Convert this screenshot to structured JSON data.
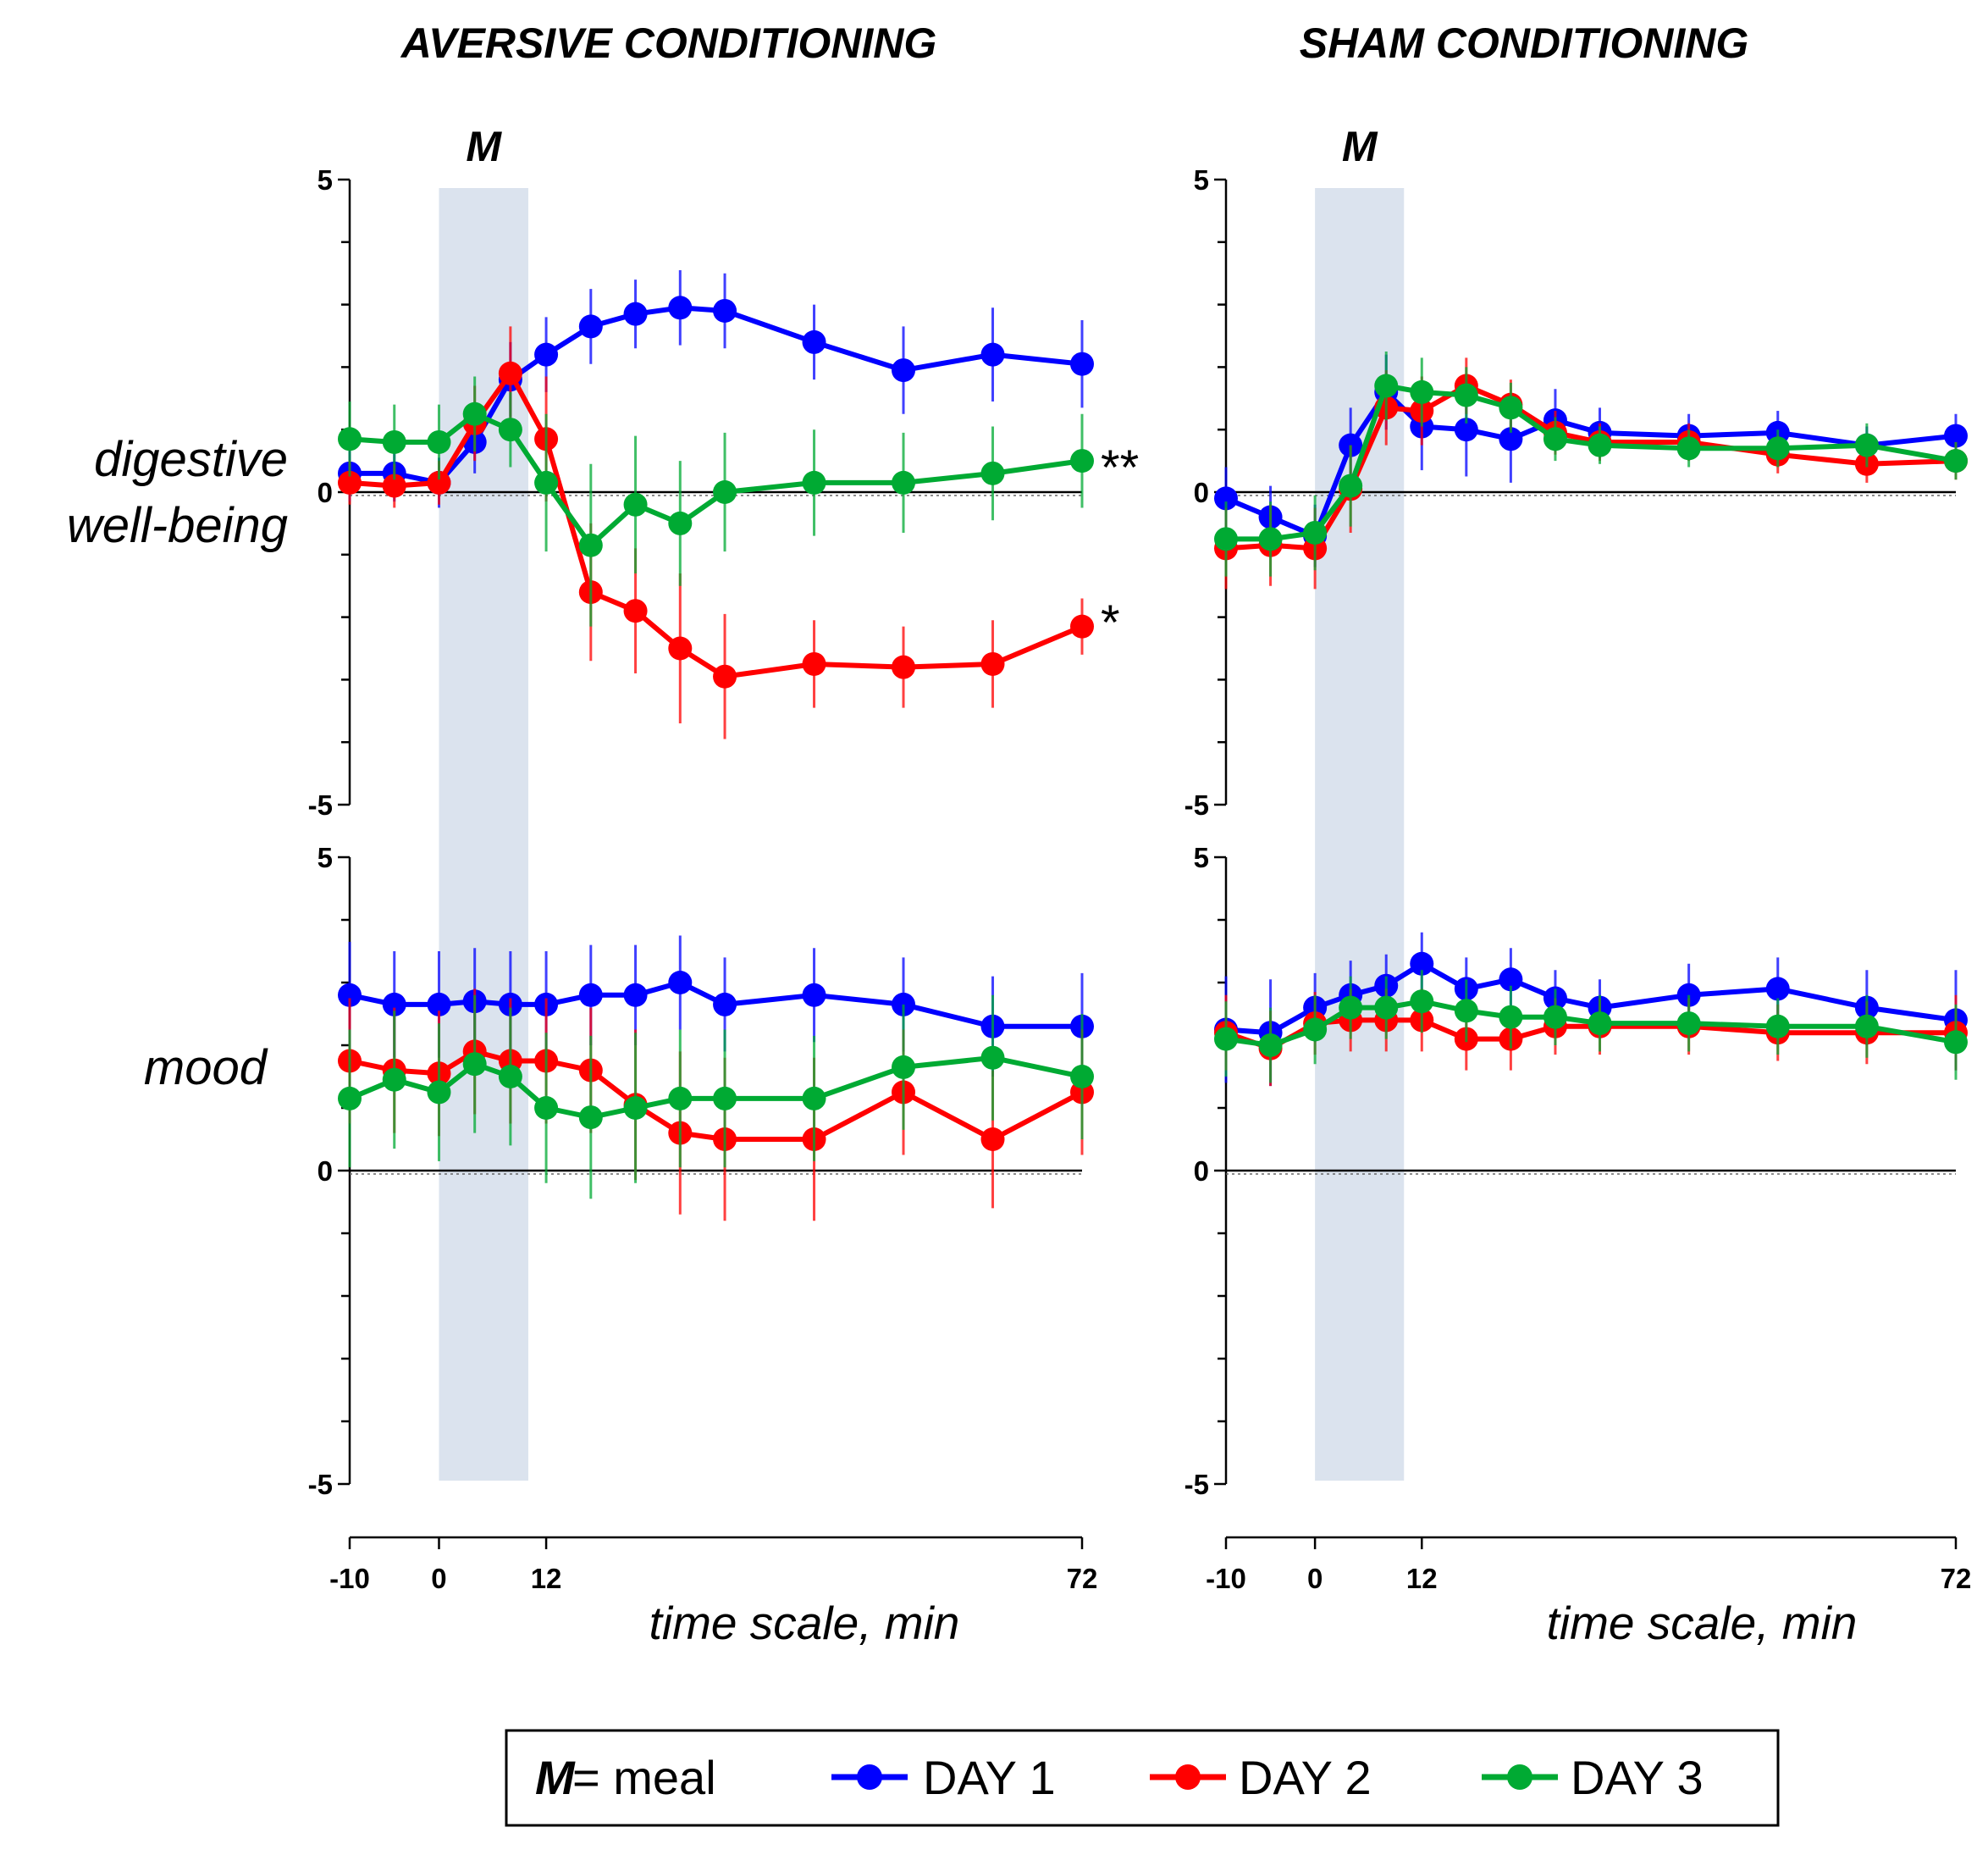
{
  "chart_data": [
    {
      "type": "line",
      "column": "AVERSIVE CONDITIONING",
      "row": "digestive well-being",
      "x": [
        -10,
        -5,
        0,
        4,
        8,
        12,
        17,
        22,
        27,
        32,
        42,
        52,
        62,
        72
      ],
      "ylim": [
        -5,
        5
      ],
      "yticks": [
        "-5",
        "0",
        "5"
      ],
      "series": [
        {
          "name": "DAY 1",
          "color": "#0000ff",
          "values": [
            0.3,
            0.3,
            0.15,
            0.8,
            1.8,
            2.2,
            2.65,
            2.85,
            2.95,
            2.9,
            2.4,
            1.95,
            2.2,
            2.05
          ],
          "errors": [
            0.45,
            0.45,
            0.4,
            0.5,
            0.6,
            0.6,
            0.6,
            0.55,
            0.6,
            0.6,
            0.6,
            0.7,
            0.75,
            0.7
          ]
        },
        {
          "name": "DAY 2",
          "color": "#ff0000",
          "values": [
            0.15,
            0.1,
            0.15,
            1.1,
            1.9,
            0.85,
            -1.6,
            -1.9,
            -2.5,
            -2.95,
            -2.75,
            -2.8,
            -2.75,
            -2.15
          ],
          "errors": [
            0.35,
            0.35,
            0.35,
            0.6,
            0.75,
            1.0,
            1.1,
            1.0,
            1.2,
            1.0,
            0.7,
            0.65,
            0.7,
            0.45
          ]
        },
        {
          "name": "DAY 3",
          "color": "#00aa33",
          "values": [
            0.85,
            0.8,
            0.8,
            1.25,
            1.0,
            0.15,
            -0.85,
            -0.2,
            -0.5,
            0.0,
            0.15,
            0.15,
            0.3,
            0.5
          ],
          "errors": [
            0.6,
            0.6,
            0.6,
            0.6,
            0.6,
            1.1,
            1.3,
            1.1,
            1.0,
            0.95,
            0.85,
            0.8,
            0.75,
            0.75
          ]
        }
      ],
      "annotations": [
        {
          "text": "**",
          "series": "DAY 3"
        },
        {
          "text": "*",
          "series": "DAY 2"
        }
      ]
    },
    {
      "type": "line",
      "column": "SHAM CONDITIONING",
      "row": "digestive well-being",
      "x": [
        -10,
        -5,
        0,
        4,
        8,
        12,
        17,
        22,
        27,
        32,
        42,
        52,
        62,
        72
      ],
      "ylim": [
        -5,
        5
      ],
      "yticks": [
        "-5",
        "0",
        "5"
      ],
      "series": [
        {
          "name": "DAY 1",
          "color": "#0000ff",
          "values": [
            -0.1,
            -0.4,
            -0.7,
            0.75,
            1.6,
            1.05,
            1.0,
            0.85,
            1.15,
            0.95,
            0.9,
            0.95,
            0.75,
            0.9
          ],
          "errors": [
            0.5,
            0.5,
            0.5,
            0.6,
            0.6,
            0.7,
            0.75,
            0.7,
            0.5,
            0.4,
            0.35,
            0.35,
            0.3,
            0.35
          ]
        },
        {
          "name": "DAY 2",
          "color": "#ff0000",
          "values": [
            -0.9,
            -0.85,
            -0.9,
            0.05,
            1.35,
            1.3,
            1.7,
            1.4,
            0.95,
            0.8,
            0.8,
            0.6,
            0.45,
            0.5
          ],
          "errors": [
            0.65,
            0.65,
            0.65,
            0.7,
            0.6,
            0.55,
            0.45,
            0.4,
            0.35,
            0.3,
            0.3,
            0.3,
            0.3,
            0.3
          ]
        },
        {
          "name": "DAY 3",
          "color": "#00aa33",
          "values": [
            -0.75,
            -0.75,
            -0.65,
            0.1,
            1.7,
            1.6,
            1.55,
            1.35,
            0.85,
            0.75,
            0.7,
            0.7,
            0.75,
            0.5
          ],
          "errors": [
            0.6,
            0.6,
            0.6,
            0.65,
            0.55,
            0.55,
            0.45,
            0.4,
            0.35,
            0.3,
            0.3,
            0.3,
            0.35,
            0.3
          ]
        }
      ]
    },
    {
      "type": "line",
      "column": "AVERSIVE CONDITIONING",
      "row": "mood",
      "x": [
        -10,
        -5,
        0,
        4,
        8,
        12,
        17,
        22,
        27,
        32,
        42,
        52,
        62,
        72
      ],
      "ylim": [
        -5,
        5
      ],
      "yticks": [
        "-5",
        "0",
        "5"
      ],
      "series": [
        {
          "name": "DAY 1",
          "color": "#0000ff",
          "values": [
            2.8,
            2.65,
            2.65,
            2.7,
            2.65,
            2.65,
            2.8,
            2.8,
            3.0,
            2.65,
            2.8,
            2.65,
            2.3,
            2.3
          ],
          "errors": [
            0.85,
            0.85,
            0.85,
            0.85,
            0.85,
            0.85,
            0.8,
            0.8,
            0.75,
            0.75,
            0.75,
            0.75,
            0.8,
            0.85
          ]
        },
        {
          "name": "DAY 2",
          "color": "#ff0000",
          "values": [
            1.75,
            1.6,
            1.55,
            1.9,
            1.75,
            1.75,
            1.6,
            1.05,
            0.6,
            0.5,
            0.5,
            1.25,
            0.5,
            1.25
          ],
          "errors": [
            1.0,
            1.0,
            1.0,
            1.0,
            1.0,
            1.0,
            1.0,
            1.2,
            1.3,
            1.3,
            1.3,
            1.0,
            1.1,
            1.0
          ]
        },
        {
          "name": "DAY 3",
          "color": "#00aa33",
          "values": [
            1.15,
            1.45,
            1.25,
            1.7,
            1.5,
            1.0,
            0.85,
            1.0,
            1.15,
            1.15,
            1.15,
            1.65,
            1.8,
            1.5
          ],
          "errors": [
            1.1,
            1.1,
            1.1,
            1.1,
            1.1,
            1.2,
            1.3,
            1.2,
            1.1,
            1.1,
            1.0,
            1.0,
            1.0,
            1.0
          ]
        }
      ]
    },
    {
      "type": "line",
      "column": "SHAM CONDITIONING",
      "row": "mood",
      "x": [
        -10,
        -5,
        0,
        4,
        8,
        12,
        17,
        22,
        27,
        32,
        42,
        52,
        62,
        72
      ],
      "ylim": [
        -5,
        5
      ],
      "yticks": [
        "-5",
        "0",
        "5"
      ],
      "series": [
        {
          "name": "DAY 1",
          "color": "#0000ff",
          "values": [
            2.25,
            2.2,
            2.6,
            2.8,
            2.95,
            3.3,
            2.9,
            3.05,
            2.75,
            2.6,
            2.8,
            2.9,
            2.6,
            2.4
          ],
          "errors": [
            0.85,
            0.85,
            0.55,
            0.55,
            0.5,
            0.5,
            0.5,
            0.5,
            0.45,
            0.45,
            0.5,
            0.5,
            0.6,
            0.8
          ]
        },
        {
          "name": "DAY 2",
          "color": "#ff0000",
          "values": [
            2.2,
            1.95,
            2.35,
            2.4,
            2.4,
            2.4,
            2.1,
            2.1,
            2.3,
            2.3,
            2.3,
            2.2,
            2.2,
            2.2
          ],
          "errors": [
            0.6,
            0.6,
            0.5,
            0.5,
            0.5,
            0.5,
            0.5,
            0.5,
            0.45,
            0.45,
            0.45,
            0.45,
            0.5,
            0.6
          ]
        },
        {
          "name": "DAY 3",
          "color": "#00aa33",
          "values": [
            2.1,
            2.0,
            2.25,
            2.6,
            2.6,
            2.7,
            2.55,
            2.45,
            2.45,
            2.35,
            2.35,
            2.3,
            2.3,
            2.05
          ],
          "errors": [
            0.6,
            0.6,
            0.55,
            0.5,
            0.5,
            0.5,
            0.5,
            0.5,
            0.45,
            0.45,
            0.45,
            0.45,
            0.5,
            0.6
          ]
        }
      ]
    }
  ],
  "figure": {
    "columns": [
      "AVERSIVE CONDITIONING",
      "SHAM CONDITIONING"
    ],
    "meal_marker": "M",
    "meal_window": [
      0,
      10
    ],
    "row_labels": {
      "digestive": [
        "digestive",
        "well-being"
      ],
      "mood": "mood"
    },
    "x_ticks": [
      "-10",
      "0",
      "12",
      "72"
    ],
    "x_tick_values": [
      -10,
      0,
      12,
      72
    ],
    "x_label": "time scale, min",
    "x_range": [
      -10,
      72
    ],
    "significance": {
      "day3": "**",
      "day2": "*"
    }
  },
  "legend": {
    "m_label": "M",
    "m_suffix": "= meal",
    "items": [
      {
        "label": "DAY 1",
        "color": "#0000ff"
      },
      {
        "label": "DAY 2",
        "color": "#ff0000"
      },
      {
        "label": "DAY 3",
        "color": "#00aa33"
      }
    ]
  },
  "colors": {
    "meal_band": "#dbe3ee"
  }
}
